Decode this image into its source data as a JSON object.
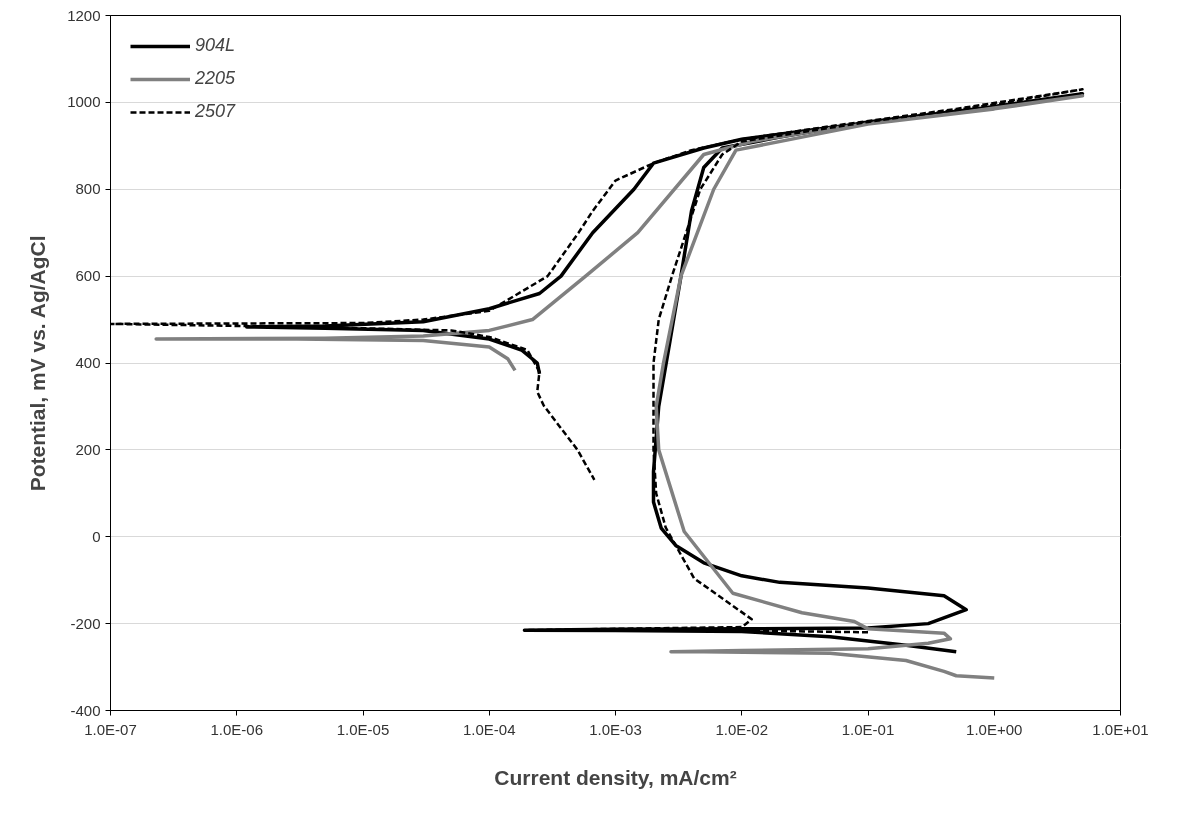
{
  "chart_data": {
    "type": "line",
    "xlabel": "Current density, mA/cm²",
    "ylabel": "Potential, mV vs. Ag/AgCl",
    "log": "x",
    "grid": "y",
    "legend": "top left",
    "xlim": [
      1e-07,
      10
    ],
    "ylim": [
      -400,
      1200
    ],
    "xticks": [
      {
        "value": 1e-07,
        "label": "1.0E-07"
      },
      {
        "value": 1e-06,
        "label": "1.0E-06"
      },
      {
        "value": 1e-05,
        "label": "1.0E-05"
      },
      {
        "value": 0.0001,
        "label": "1.0E-04"
      },
      {
        "value": 0.001,
        "label": "1.0E-03"
      },
      {
        "value": 0.01,
        "label": "1.0E-02"
      },
      {
        "value": 0.1,
        "label": "1.0E-01"
      },
      {
        "value": 1,
        "label": "1.0E+00"
      },
      {
        "value": 10,
        "label": "1.0E+01"
      }
    ],
    "yticks": [
      -400,
      -200,
      0,
      200,
      400,
      600,
      800,
      1000,
      1200
    ],
    "series": [
      {
        "name": "904L",
        "color": "#000000",
        "line_style": "solid",
        "x": [
          0.5,
          0.2,
          0.05,
          0.01,
          0.001,
          0.00019,
          0.001,
          0.01,
          0.1,
          0.3,
          0.6,
          0.4,
          0.1,
          0.02,
          0.01,
          0.005,
          0.003,
          0.0023,
          0.002,
          0.002,
          0.0022,
          0.0027,
          0.0033,
          0.004,
          0.005,
          0.007,
          0.02,
          0.1,
          1,
          5,
          0.5,
          0.05,
          0.01,
          0.005,
          0.002,
          0.0014,
          0.00066,
          0.00037,
          0.00025,
          0.0001,
          3e-05,
          5e-06,
          1.2e-06,
          5e-06,
          3e-05,
          0.0001,
          0.00018,
          0.00024,
          0.00025
        ],
        "values": [
          -265,
          -250,
          -230,
          -218,
          -216,
          -215,
          -213,
          -212,
          -210,
          -200,
          -168,
          -136,
          -118,
          -105,
          -90,
          -60,
          -20,
          20,
          80,
          150,
          300,
          450,
          600,
          750,
          850,
          895,
          920,
          955,
          990,
          1020,
          978,
          942,
          915,
          895,
          860,
          800,
          700,
          600,
          560,
          525,
          495,
          485,
          483,
          480,
          475,
          455,
          430,
          400,
          375
        ]
      },
      {
        "name": "2205",
        "color": "#808080",
        "line_style": "solid",
        "x": [
          1,
          0.5,
          0.4,
          0.2,
          0.05,
          0.005,
          0.00275,
          0.01,
          0.1,
          0.3,
          0.45,
          0.4,
          0.1,
          0.078,
          0.03,
          0.0085,
          0.0035,
          0.0022,
          0.0021,
          0.0024,
          0.0033,
          0.006,
          0.009,
          0.03,
          0.1,
          1,
          5,
          0.5,
          0.05,
          0.012,
          0.005,
          0.0015,
          0.00058,
          0.00022,
          0.0001,
          3e-05,
          5e-06,
          2.3e-07,
          3e-06,
          3e-05,
          0.0001,
          0.00014,
          0.00016
        ],
        "values": [
          -325,
          -320,
          -310,
          -285,
          -268,
          -265,
          -265,
          -262,
          -258,
          -245,
          -235,
          -222,
          -212,
          -195,
          -175,
          -130,
          12,
          200,
          300,
          400,
          600,
          800,
          890,
          920,
          950,
          985,
          1015,
          975,
          940,
          910,
          880,
          700,
          600,
          500,
          475,
          462,
          457,
          455,
          455,
          452,
          437,
          410,
          383
        ]
      },
      {
        "name": "2507",
        "color": "#000000",
        "line_style": "dashed",
        "x": [
          0.1,
          0.01,
          0.001,
          0.0002,
          0.001,
          0.01,
          0.012,
          0.0085,
          0.0042,
          0.0025,
          0.0021,
          0.002,
          0.002,
          0.0022,
          0.0028,
          0.0047,
          0.007,
          0.01,
          0.1,
          1,
          5,
          0.5,
          0.05,
          0.01,
          0.004,
          0.002,
          0.001,
          0.00066,
          0.00051,
          0.00029,
          0.0001,
          3e-05,
          1e-05,
          1e-07,
          1.2e-06,
          1e-05,
          5e-05,
          0.0001,
          0.0002,
          0.00025,
          0.00024,
          0.00027,
          0.0005,
          0.00068
        ],
        "values": [
          -220,
          -216,
          -215,
          -215,
          -212,
          -208,
          -190,
          -159,
          -96,
          21,
          100,
          200,
          400,
          500,
          600,
          800,
          880,
          910,
          955,
          995,
          1030,
          985,
          945,
          915,
          890,
          860,
          820,
          750,
          700,
          600,
          520,
          500,
          492,
          490,
          485,
          480,
          475,
          460,
          430,
          380,
          334,
          302,
          200,
          131
        ]
      }
    ]
  }
}
